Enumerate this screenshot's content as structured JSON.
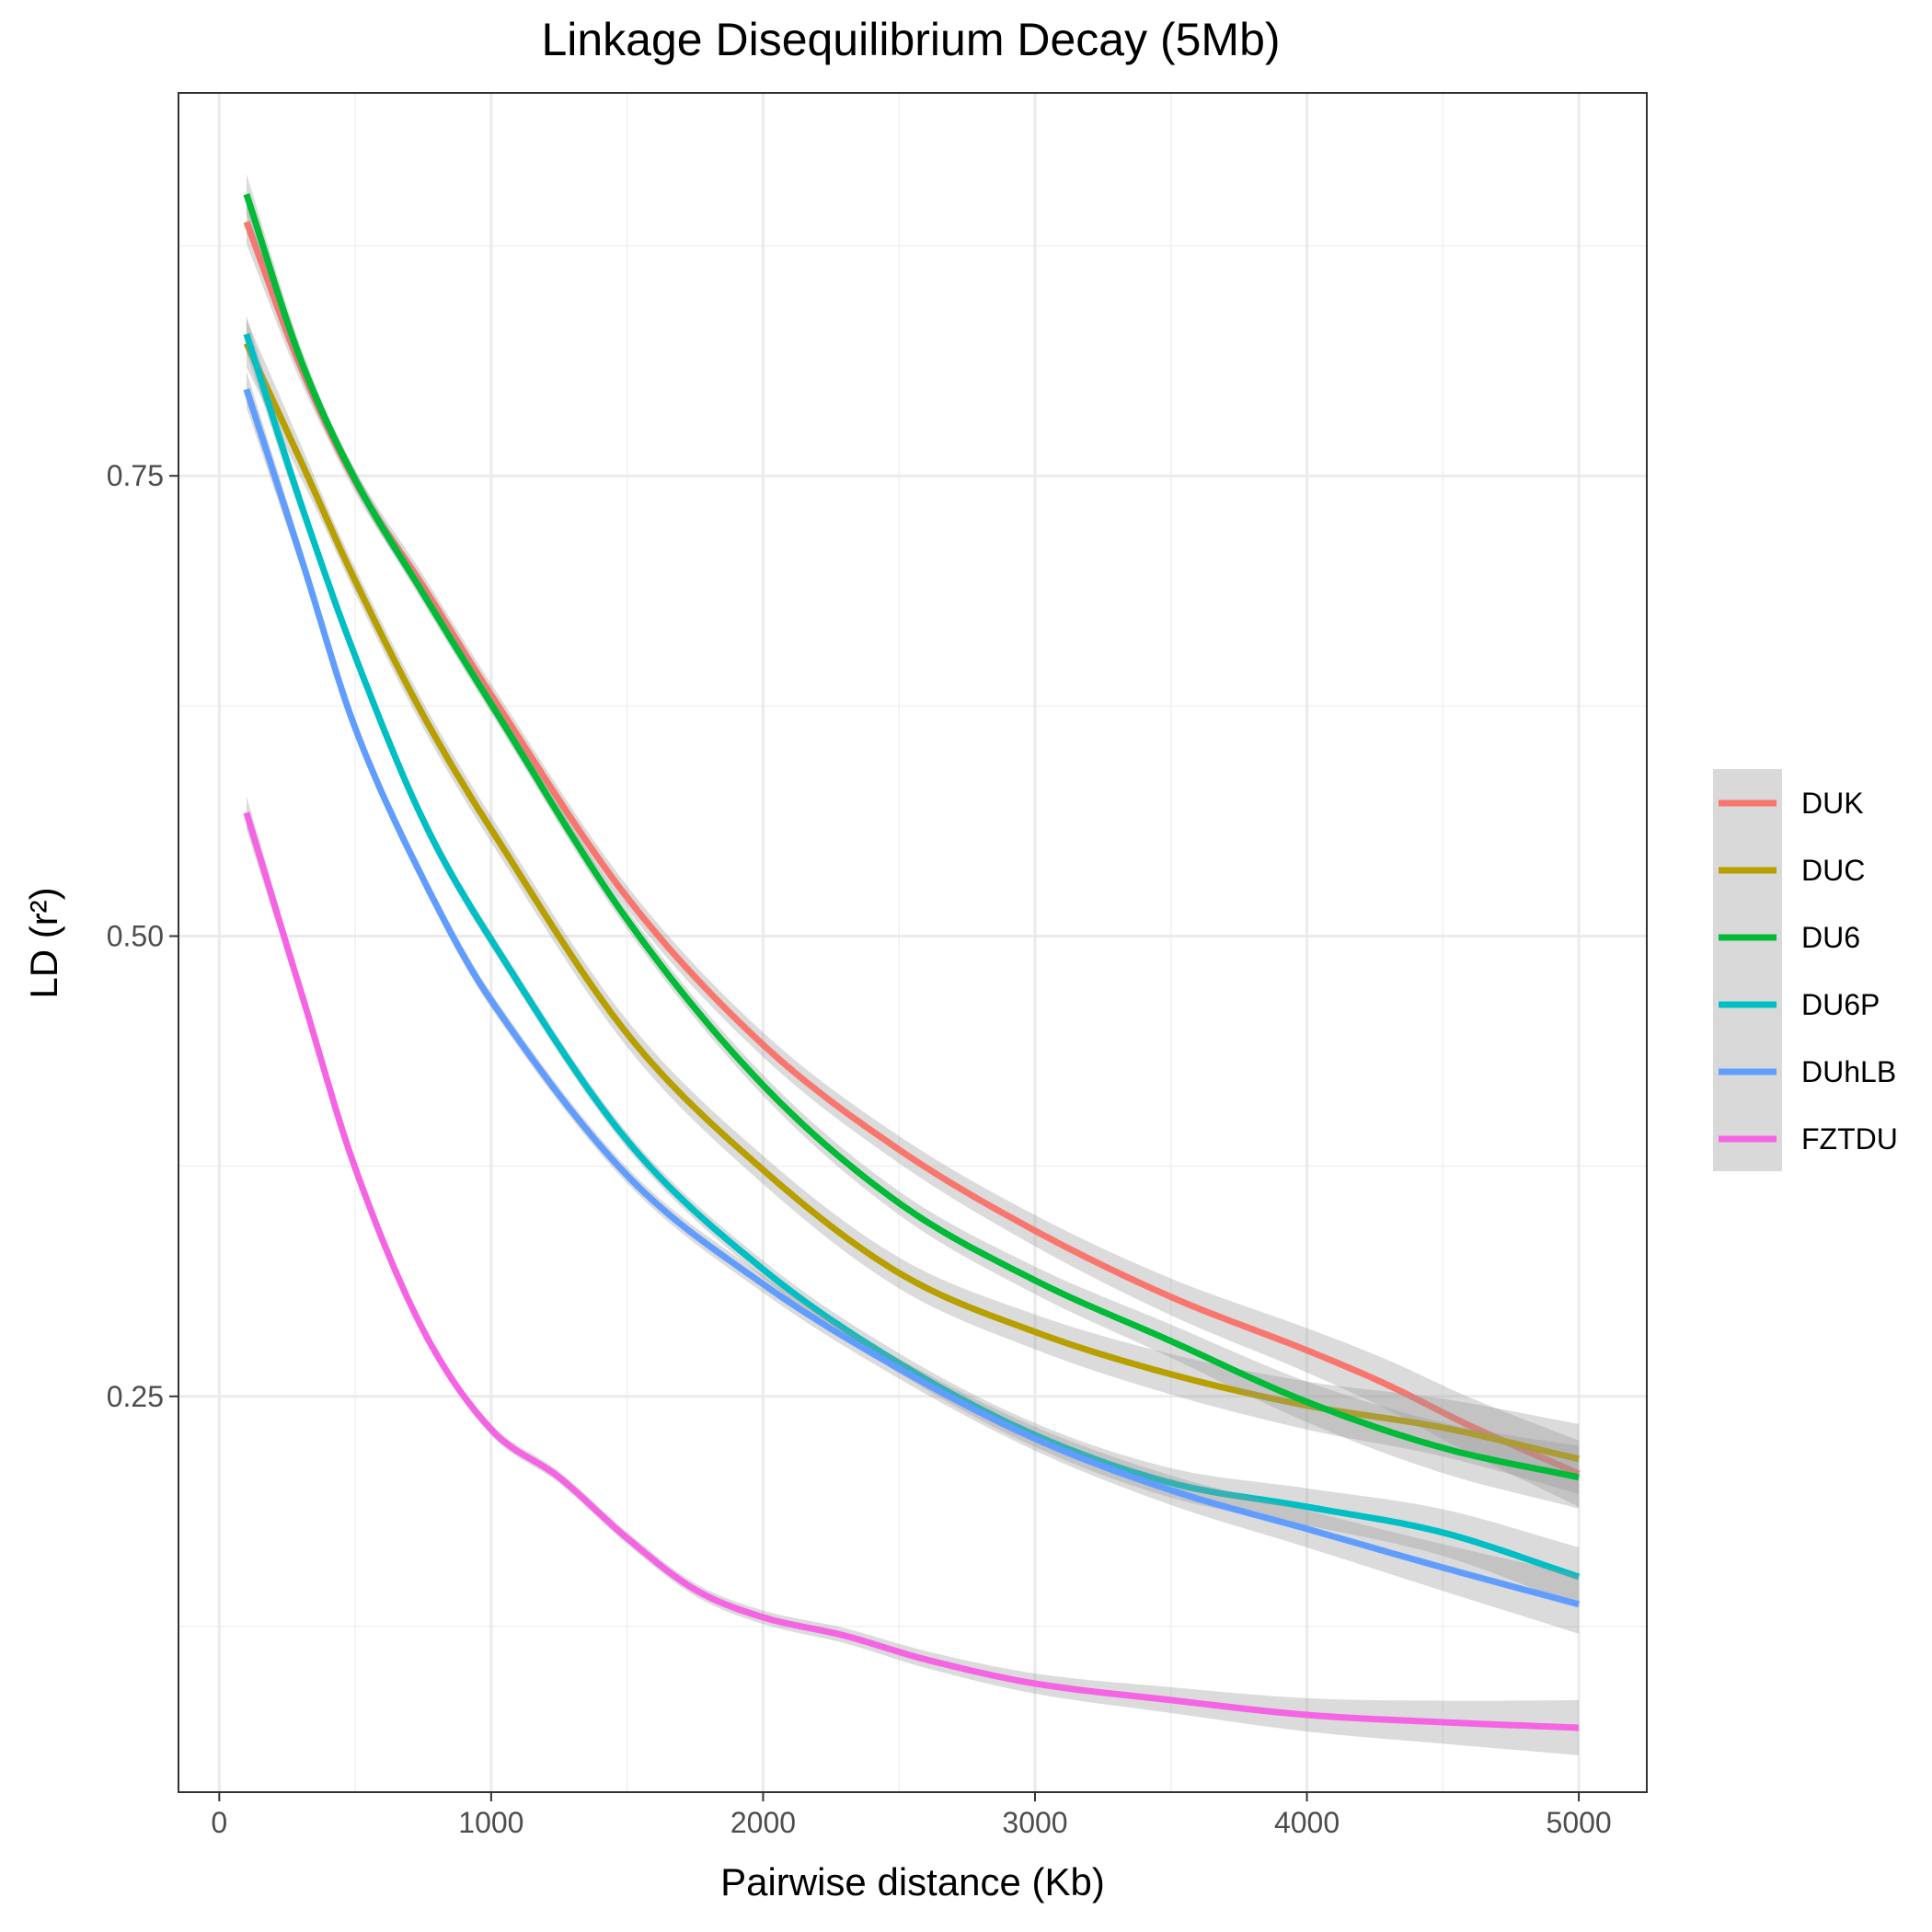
{
  "chart_data": {
    "type": "line",
    "title": "Linkage Disequilibrium Decay (5Mb)",
    "xlabel": "Pairwise distance (Kb)",
    "ylabel": "LD (r²)",
    "xlim": [
      -150,
      5250
    ],
    "ylim": [
      0.035,
      0.958
    ],
    "x_ticks": [
      0,
      1000,
      2000,
      3000,
      4000,
      5000
    ],
    "x_tick_labels": [
      "0",
      "1000",
      "2000",
      "3000",
      "4000",
      "5000"
    ],
    "y_ticks": [
      0.25,
      0.5,
      0.75
    ],
    "y_tick_labels": [
      "0.25",
      "0.50",
      "0.75"
    ],
    "grid": true,
    "legend_position": "right",
    "confidence_band": true,
    "series": [
      {
        "name": "DUK",
        "color": "#F8766D",
        "x": [
          100,
          300,
          500,
          750,
          1000,
          1500,
          2000,
          2500,
          3000,
          3500,
          4000,
          4300,
          4600,
          5000
        ],
        "y": [
          0.888,
          0.809,
          0.747,
          0.69,
          0.631,
          0.521,
          0.441,
          0.384,
          0.34,
          0.304,
          0.275,
          0.256,
          0.234,
          0.208
        ]
      },
      {
        "name": "DUC",
        "color": "#B79F00",
        "x": [
          100,
          300,
          500,
          750,
          1000,
          1500,
          2000,
          2500,
          3000,
          3500,
          4000,
          4500,
          5000
        ],
        "y": [
          0.822,
          0.758,
          0.693,
          0.62,
          0.558,
          0.447,
          0.373,
          0.317,
          0.285,
          0.262,
          0.245,
          0.233,
          0.216
        ]
      },
      {
        "name": "DU6",
        "color": "#00BA38",
        "x": [
          100,
          300,
          500,
          750,
          1000,
          1500,
          2000,
          2500,
          3000,
          3500,
          4000,
          4500,
          5000
        ],
        "y": [
          0.903,
          0.813,
          0.748,
          0.686,
          0.626,
          0.509,
          0.419,
          0.355,
          0.313,
          0.28,
          0.247,
          0.222,
          0.206
        ]
      },
      {
        "name": "DU6P",
        "color": "#00BFC4",
        "x": [
          100,
          300,
          500,
          750,
          1000,
          1500,
          2000,
          2500,
          3000,
          3500,
          4000,
          4500,
          5000
        ],
        "y": [
          0.827,
          0.735,
          0.652,
          0.563,
          0.498,
          0.389,
          0.319,
          0.268,
          0.229,
          0.203,
          0.19,
          0.176,
          0.152
        ]
      },
      {
        "name": "DUhLB",
        "color": "#619CFF",
        "x": [
          100,
          300,
          500,
          750,
          1000,
          1500,
          2000,
          2500,
          3000,
          3500,
          4000,
          4500,
          5000
        ],
        "y": [
          0.797,
          0.706,
          0.613,
          0.531,
          0.465,
          0.37,
          0.311,
          0.265,
          0.227,
          0.199,
          0.178,
          0.157,
          0.137
        ]
      },
      {
        "name": "FZTDU",
        "color": "#F564E3",
        "x": [
          100,
          300,
          500,
          750,
          1000,
          1250,
          1500,
          1750,
          2000,
          2300,
          2600,
          3000,
          3500,
          4000,
          4500,
          5000
        ],
        "y": [
          0.567,
          0.47,
          0.374,
          0.286,
          0.232,
          0.206,
          0.173,
          0.145,
          0.13,
          0.12,
          0.107,
          0.094,
          0.085,
          0.077,
          0.073,
          0.07
        ]
      }
    ]
  }
}
